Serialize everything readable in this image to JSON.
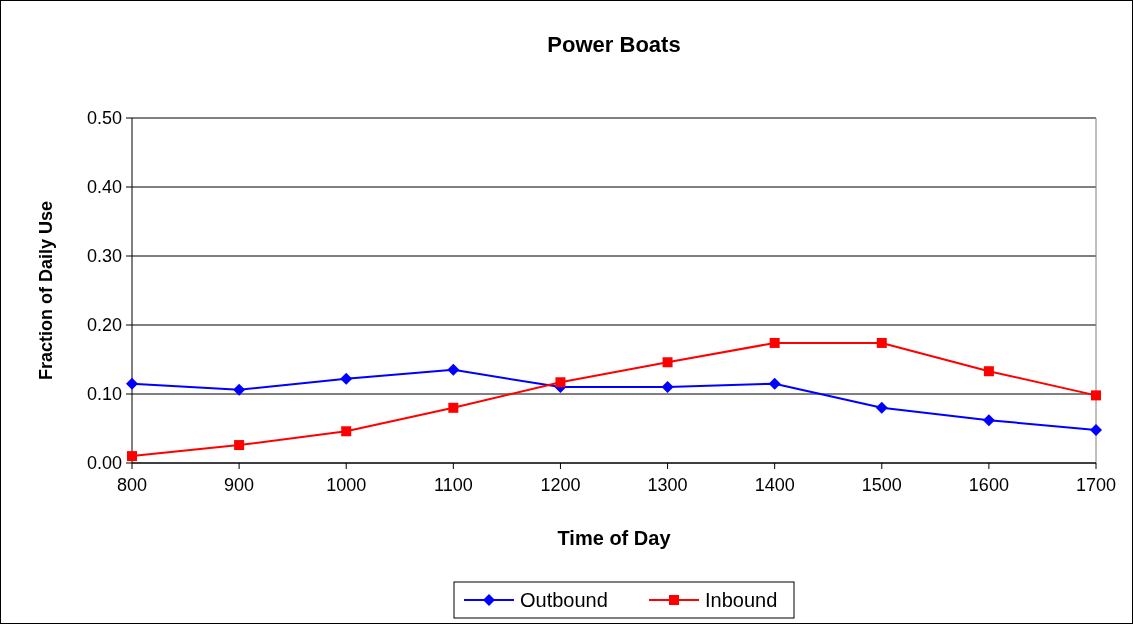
{
  "chart_data": {
    "type": "line",
    "title": "Power Boats",
    "xlabel": "Time of Day",
    "ylabel": "Fraction of Daily Use",
    "x": [
      800,
      900,
      1000,
      1100,
      1200,
      1300,
      1400,
      1500,
      1600,
      1700
    ],
    "xlim": [
      800,
      1700
    ],
    "xticks": [
      800,
      900,
      1000,
      1100,
      1200,
      1300,
      1400,
      1500,
      1600,
      1700
    ],
    "ylim": [
      0,
      0.5
    ],
    "yticks": [
      {
        "value": 0,
        "label": "0.00"
      },
      {
        "value": 0.1,
        "label": "0.10"
      },
      {
        "value": 0.2,
        "label": "0.20"
      },
      {
        "value": 0.3,
        "label": "0.30"
      },
      {
        "value": 0.4,
        "label": "0.40"
      },
      {
        "value": 0.5,
        "label": "0.50"
      }
    ],
    "grid": "y",
    "legend": "bottom",
    "line_style": "solid",
    "series": [
      {
        "name": "Outbound",
        "color": "#0000ff",
        "marker": "diamond",
        "values": [
          0.115,
          0.106,
          0.122,
          0.135,
          0.11,
          0.11,
          0.115,
          0.08,
          0.062,
          0.048
        ]
      },
      {
        "name": "Inbound",
        "color": "#ff0000",
        "marker": "square",
        "values": [
          0.01,
          0.026,
          0.046,
          0.08,
          0.117,
          0.146,
          0.174,
          0.174,
          0.133,
          0.098
        ]
      }
    ]
  }
}
